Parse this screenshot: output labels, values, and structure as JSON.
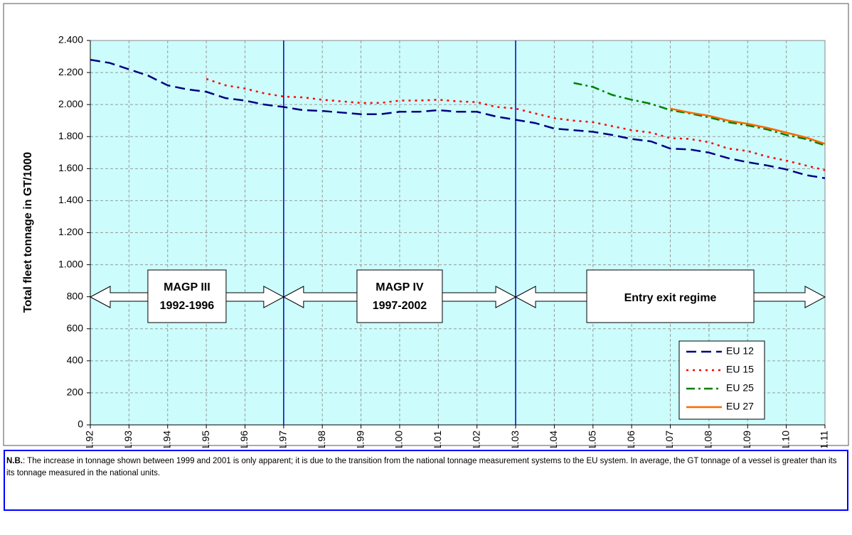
{
  "chart_data": {
    "type": "line",
    "y_label": "Total fleet tonnage in GT/1000",
    "categories": [
      "1.1.92",
      null,
      "1.1.93",
      null,
      "1.1.94",
      null,
      "1.1.95",
      null,
      "1.1.96",
      null,
      "1.1.97",
      null,
      "1.1.98",
      null,
      "1.1.99",
      null,
      "1.1.00",
      null,
      "1.1.01",
      null,
      "1.1.02",
      null,
      "1.1.03",
      null,
      "1.1.04",
      null,
      "1.1.05",
      null,
      "1.1.06",
      null,
      "1.1.07",
      null,
      "1.1.08",
      null,
      "1.1.09",
      null,
      "1.1.10",
      null,
      "1.1.11"
    ],
    "series": [
      {
        "name": "EU 12",
        "color": "#000080",
        "values": [
          2280,
          2260,
          2220,
          2180,
          2120,
          2095,
          2080,
          2040,
          2025,
          2000,
          1985,
          1965,
          1960,
          1950,
          1940,
          1940,
          1955,
          1955,
          1965,
          1955,
          1955,
          1925,
          1905,
          1885,
          1850,
          1840,
          1830,
          1810,
          1785,
          1770,
          1725,
          1720,
          1700,
          1665,
          1640,
          1620,
          1595,
          1560,
          1540
        ]
      },
      {
        "name": "EU 15",
        "color": "#ff0000",
        "values": [
          null,
          null,
          null,
          null,
          null,
          null,
          2160,
          2120,
          2100,
          2070,
          2050,
          2045,
          2030,
          2020,
          2010,
          2010,
          2025,
          2025,
          2030,
          2020,
          2015,
          1985,
          1975,
          1945,
          1915,
          1900,
          1890,
          1865,
          1840,
          1825,
          1790,
          1785,
          1765,
          1725,
          1710,
          1675,
          1650,
          1620,
          1590
        ]
      },
      {
        "name": "EU 25",
        "color": "#008000",
        "values": [
          null,
          null,
          null,
          null,
          null,
          null,
          null,
          null,
          null,
          null,
          null,
          null,
          null,
          null,
          null,
          null,
          null,
          null,
          null,
          null,
          null,
          null,
          null,
          null,
          null,
          2135,
          2110,
          2060,
          2030,
          2005,
          1965,
          1945,
          1920,
          1890,
          1870,
          1845,
          1810,
          1785,
          1745
        ]
      },
      {
        "name": "EU 27",
        "color": "#ff6600",
        "values": [
          null,
          null,
          null,
          null,
          null,
          null,
          null,
          null,
          null,
          null,
          null,
          null,
          null,
          null,
          null,
          null,
          null,
          null,
          null,
          null,
          null,
          null,
          null,
          null,
          null,
          null,
          null,
          null,
          null,
          null,
          1975,
          1950,
          1930,
          1900,
          1880,
          1855,
          1825,
          1795,
          1755
        ]
      }
    ],
    "ylim": [
      0,
      2400
    ],
    "yticks": [
      0,
      200,
      400,
      600,
      800,
      {
        "value": 1000,
        "label": "1.000"
      },
      {
        "value": 1200,
        "label": "1.200"
      },
      {
        "value": 1400,
        "label": "1.400"
      },
      {
        "value": 1600,
        "label": "1.600"
      },
      {
        "value": 1800,
        "label": "1.800"
      },
      {
        "value": 2000,
        "label": "2.000"
      },
      {
        "value": 2200,
        "label": "2.200"
      },
      {
        "value": 2400,
        "label": "2.400"
      }
    ],
    "grid": true,
    "legend": "lower right",
    "period_boundaries": [
      "1.1.97",
      "1.1.03"
    ],
    "periods": [
      {
        "lines": [
          "MAGP III",
          "1992-1996"
        ]
      },
      {
        "lines": [
          "MAGP IV",
          "1997-2002"
        ]
      },
      {
        "lines": [
          "Entry exit regime"
        ]
      }
    ],
    "note_label": "N.B.",
    "note": ": The increase in tonnage shown between 1999 and 2001 is only apparent; it is due to the transition from the national tonnage measurement systems to the EU system. In average, the GT tonnage of a vessel is greater than its its tonnage measured in the national units."
  }
}
